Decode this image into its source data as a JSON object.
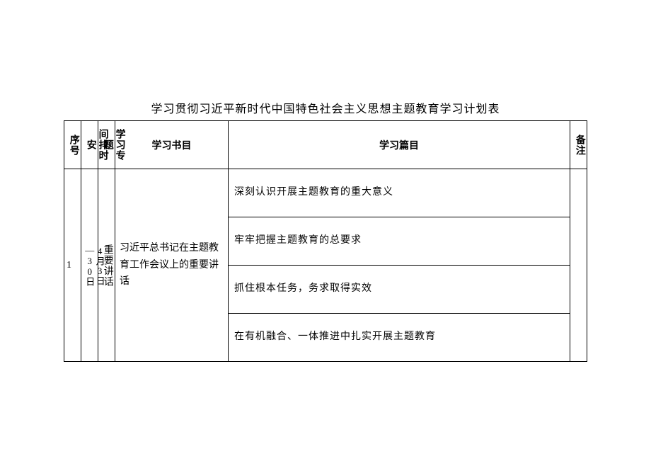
{
  "title": "学习贯彻习近平新时代中国特色社会主义思想主题教育学习计划表",
  "table": {
    "columns": [
      "序号",
      "间排时安",
      "学习专题",
      "学习书目",
      "学习篇目",
      "备注"
    ],
    "row": {
      "seq": "1",
      "time_line1": "4月3日",
      "time_line2": "—30日",
      "topic": "重要讲话",
      "book": "习近平总书记在主题教育工作会议上的重要讲话",
      "chapters": [
        "深刻认识开展主题教育的重大意义",
        "牢牢把握主题教育的总要求",
        "抓住根本任务，务求取得实效",
        "在有机融合、一体推进中扎实开展主题教育"
      ],
      "note": ""
    }
  },
  "colors": {
    "border": "#000000",
    "background": "#ffffff",
    "text": "#000000"
  }
}
